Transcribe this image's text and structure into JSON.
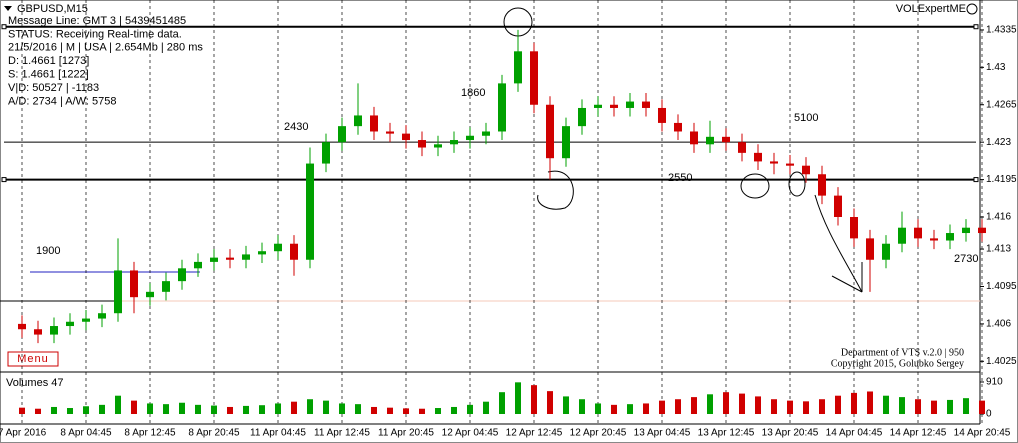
{
  "chart_data": {
    "type": "candlestick",
    "title": "GBPUSD,M15",
    "indicator": "VOLExpertME",
    "info": [
      "Message Line: GMT 3 | 5439451485",
      "STATUS:  Receiving Real-time data.",
      "21/5/2016 | M | USA | 2.654Mb | 280 ms",
      "D: 1.4661  [1273]",
      "S: 1.4661  [1222]",
      "V|D: 50527 | -1183",
      "A/D: 2734 | A/W: 5758"
    ],
    "menu": "Menu",
    "annotations": [
      "1900",
      "2430",
      "1860",
      "2550",
      "5100",
      "2730"
    ],
    "footer": [
      "Department of VTS  v.2.0 | 950",
      "Copyright 2015, Golubko Sergey"
    ],
    "categories": [
      "7 Apr 2016",
      null,
      null,
      null,
      "8 Apr 04:45",
      null,
      null,
      null,
      "8 Apr 12:45",
      null,
      null,
      null,
      "8 Apr 20:45",
      null,
      null,
      null,
      "11 Apr 04:45",
      null,
      null,
      null,
      "11 Apr 12:45",
      null,
      null,
      null,
      "11 Apr 20:45",
      null,
      null,
      null,
      "12 Apr 04:45",
      null,
      null,
      null,
      "12 Apr 12:45",
      null,
      null,
      null,
      "12 Apr 20:45",
      null,
      null,
      null,
      "13 Apr 04:45",
      null,
      null,
      null,
      "13 Apr 12:45",
      null,
      null,
      null,
      "13 Apr 20:45",
      null,
      null,
      null,
      "14 Apr 04:45",
      null,
      null,
      null,
      "14 Apr 12:45",
      null,
      null,
      null,
      "14 Apr 20:45"
    ],
    "open": [
      1.406,
      1.4055,
      1.405,
      1.4058,
      1.4062,
      1.4065,
      1.407,
      1.411,
      1.4085,
      1.409,
      1.41,
      1.4112,
      1.4118,
      1.4122,
      1.412,
      1.4125,
      1.4128,
      1.4135,
      1.412,
      1.421,
      1.423,
      1.4245,
      1.4255,
      1.424,
      1.4238,
      1.4232,
      1.4225,
      1.4228,
      1.4232,
      1.4236,
      1.424,
      1.4285,
      1.4315,
      1.4265,
      1.4215,
      1.4245,
      1.4262,
      1.4265,
      1.4262,
      1.4268,
      1.4262,
      1.4248,
      1.424,
      1.4228,
      1.4235,
      1.423,
      1.422,
      1.4212,
      1.421,
      1.4208,
      1.42,
      1.418,
      1.416,
      1.414,
      1.412,
      1.4135,
      1.415,
      1.414,
      1.4138,
      1.4145,
      1.415
    ],
    "high": [
      1.4068,
      1.4063,
      1.4066,
      1.407,
      1.4073,
      1.4078,
      1.414,
      1.4118,
      1.4098,
      1.4108,
      1.412,
      1.4126,
      1.413,
      1.413,
      1.4133,
      1.4136,
      1.4143,
      1.4143,
      1.4225,
      1.4238,
      1.4253,
      1.4285,
      1.4263,
      1.4248,
      1.4246,
      1.424,
      1.4236,
      1.424,
      1.4244,
      1.4248,
      1.4293,
      1.4335,
      1.4323,
      1.4273,
      1.4253,
      1.427,
      1.4273,
      1.4273,
      1.4276,
      1.4276,
      1.427,
      1.4256,
      1.4248,
      1.425,
      1.4243,
      1.4238,
      1.4228,
      1.422,
      1.4218,
      1.4216,
      1.4208,
      1.4188,
      1.4168,
      1.4148,
      1.4143,
      1.4165,
      1.4158,
      1.4148,
      1.4153,
      1.4158,
      1.4158
    ],
    "low": [
      1.4047,
      1.4042,
      1.4042,
      1.405,
      1.4054,
      1.4057,
      1.4062,
      1.407,
      1.4077,
      1.4082,
      1.4092,
      1.4104,
      1.411,
      1.4112,
      1.4112,
      1.4117,
      1.412,
      1.4105,
      1.4112,
      1.4202,
      1.4222,
      1.4237,
      1.4232,
      1.423,
      1.4224,
      1.4217,
      1.4217,
      1.422,
      1.4224,
      1.4228,
      1.4232,
      1.4277,
      1.4257,
      1.4195,
      1.4207,
      1.4237,
      1.4254,
      1.4254,
      1.4254,
      1.4254,
      1.424,
      1.4232,
      1.422,
      1.422,
      1.4222,
      1.4212,
      1.4204,
      1.42,
      1.42,
      1.4192,
      1.4172,
      1.4152,
      1.4132,
      1.409,
      1.4112,
      1.4127,
      1.4132,
      1.413,
      1.413,
      1.4137,
      1.4137
    ],
    "close": [
      1.4055,
      1.405,
      1.4058,
      1.4062,
      1.4065,
      1.407,
      1.411,
      1.4085,
      1.409,
      1.41,
      1.4112,
      1.4118,
      1.4122,
      1.412,
      1.4125,
      1.4128,
      1.4135,
      1.412,
      1.421,
      1.423,
      1.4245,
      1.4255,
      1.424,
      1.4238,
      1.4232,
      1.4225,
      1.4228,
      1.4232,
      1.4236,
      1.424,
      1.4285,
      1.4315,
      1.4265,
      1.4215,
      1.4245,
      1.4262,
      1.4265,
      1.4262,
      1.4268,
      1.4262,
      1.4248,
      1.424,
      1.4228,
      1.4235,
      1.423,
      1.422,
      1.4212,
      1.421,
      1.4208,
      1.42,
      1.418,
      1.416,
      1.414,
      1.412,
      1.4135,
      1.415,
      1.414,
      1.4138,
      1.4145,
      1.415,
      1.4145
    ],
    "up_color": "#00a000",
    "down_color": "#d00000",
    "ylim": [
      1.4015,
      1.4363
    ],
    "yticks": [
      1.4335,
      1.43,
      1.4265,
      1.423,
      1.4195,
      1.416,
      1.413,
      1.4095,
      1.406,
      1.4025
    ],
    "levels": [
      1.4338,
      1.4195,
      1.423
    ],
    "volume": {
      "title": "Volumes 47",
      "values": [
        180,
        150,
        200,
        170,
        220,
        260,
        520,
        380,
        300,
        280,
        320,
        260,
        240,
        200,
        230,
        250,
        300,
        350,
        420,
        380,
        300,
        280,
        200,
        180,
        160,
        150,
        170,
        200,
        260,
        350,
        620,
        900,
        820,
        650,
        500,
        420,
        300,
        260,
        280,
        300,
        380,
        420,
        480,
        560,
        620,
        580,
        500,
        420,
        380,
        360,
        420,
        520,
        600,
        640,
        520,
        480,
        420,
        380,
        400,
        450,
        380
      ],
      "ylim": [
        0,
        1080
      ],
      "yticks": [
        0,
        910
      ]
    }
  }
}
